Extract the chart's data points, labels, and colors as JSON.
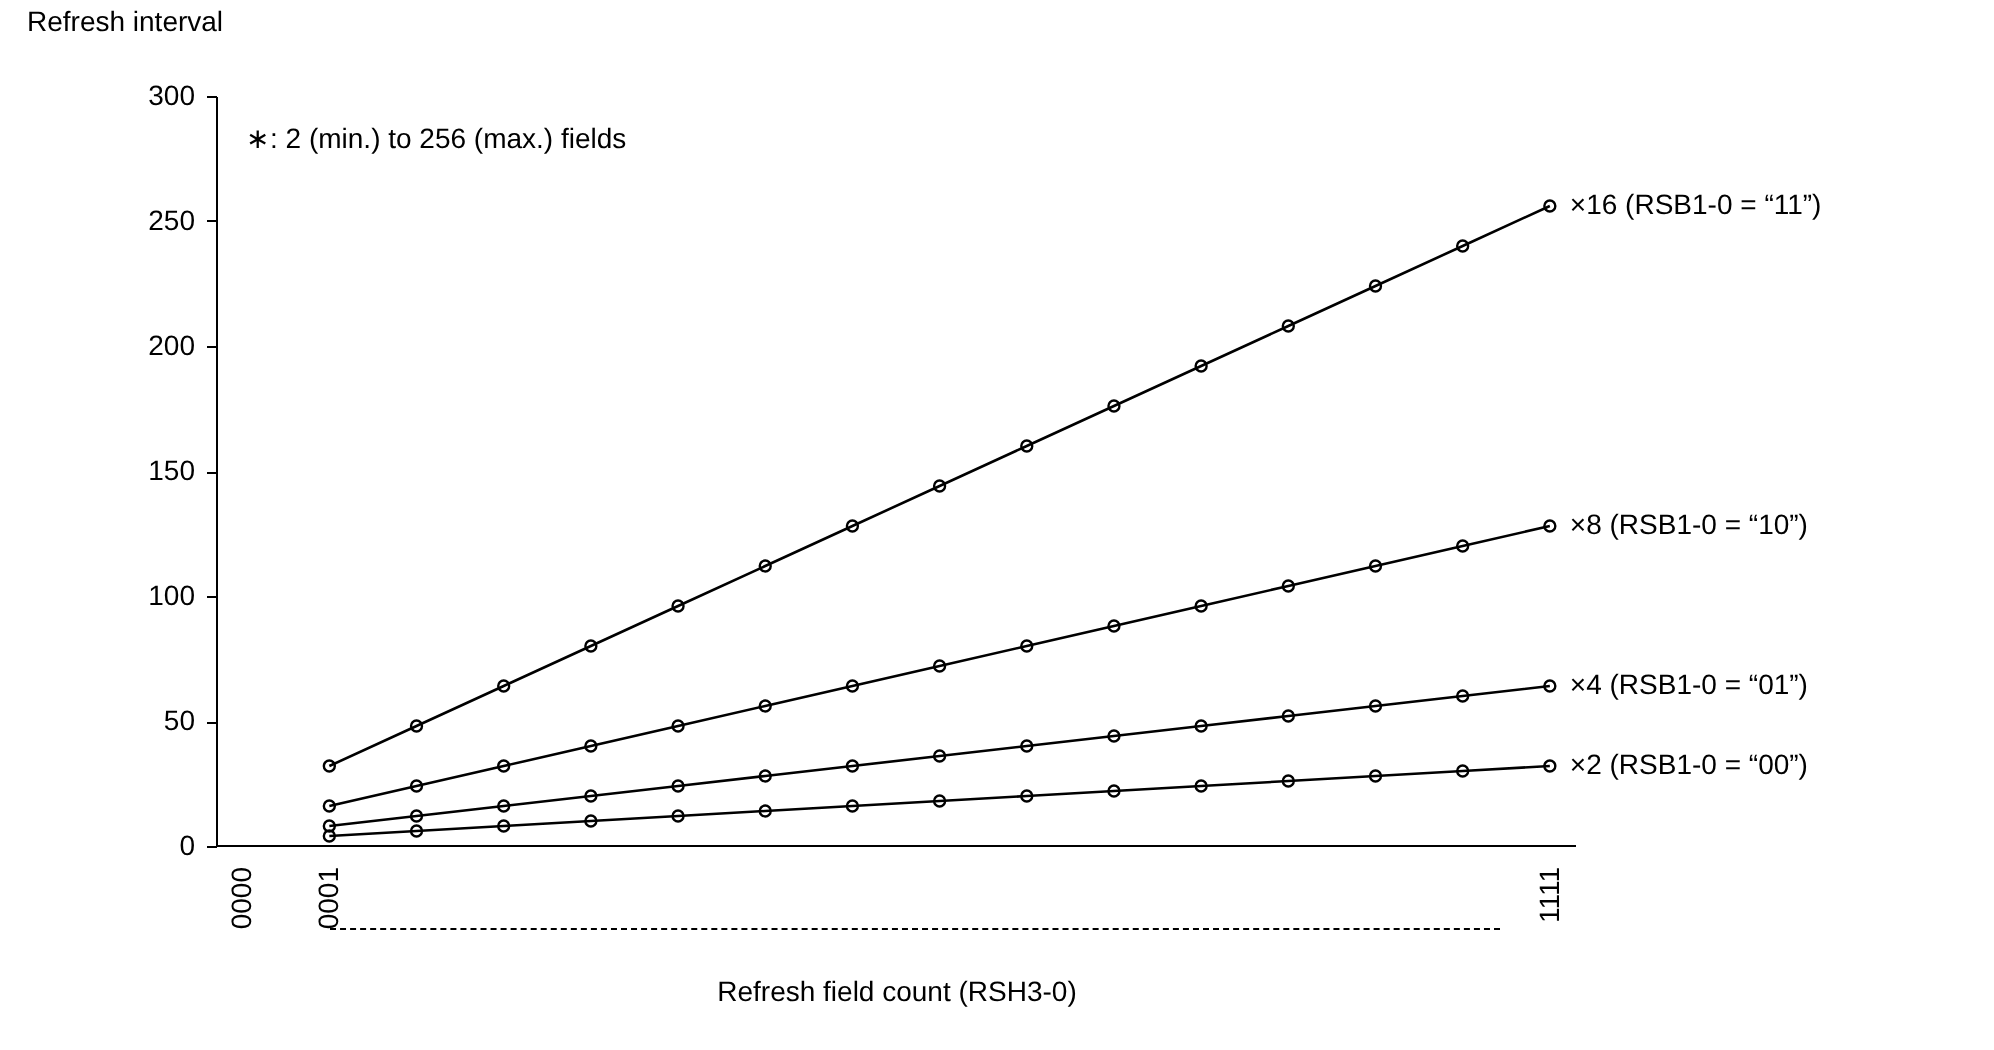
{
  "chart_data": {
    "type": "line",
    "xlabel": "Refresh field count (RSH3-0)",
    "ylabel": "Refresh interval",
    "categories": [
      "0000",
      "0001",
      null,
      null,
      null,
      null,
      null,
      null,
      null,
      null,
      null,
      null,
      null,
      null,
      null,
      "1111"
    ],
    "series": [
      {
        "name": "×16 (RSB1-0 = “11”)",
        "color": "#000000",
        "values": [
          null,
          32,
          48,
          64,
          80,
          96,
          112,
          128,
          144,
          160,
          176,
          192,
          208,
          224,
          240,
          256
        ]
      },
      {
        "name": "×8 (RSB1-0 = “10”)",
        "color": "#000000",
        "values": [
          null,
          16,
          24,
          32,
          40,
          48,
          56,
          64,
          72,
          80,
          88,
          96,
          104,
          112,
          120,
          128
        ]
      },
      {
        "name": "×4 (RSB1-0 = “01”)",
        "color": "#000000",
        "values": [
          null,
          8,
          12,
          16,
          20,
          24,
          28,
          32,
          36,
          40,
          44,
          48,
          52,
          56,
          60,
          64
        ]
      },
      {
        "name": "×2 (RSB1-0 = “00”)",
        "color": "#000000",
        "values": [
          null,
          4,
          6,
          8,
          10,
          12,
          14,
          16,
          18,
          20,
          22,
          24,
          26,
          28,
          30,
          32
        ]
      }
    ],
    "ylim": [
      0,
      300
    ],
    "yticks": [
      0,
      50,
      100,
      150,
      200,
      250,
      300
    ],
    "annotations": [
      "∗: 2 (min.) to 256 (max.) fields"
    ],
    "marker": "circle",
    "line_style": "solid",
    "grid": false
  }
}
